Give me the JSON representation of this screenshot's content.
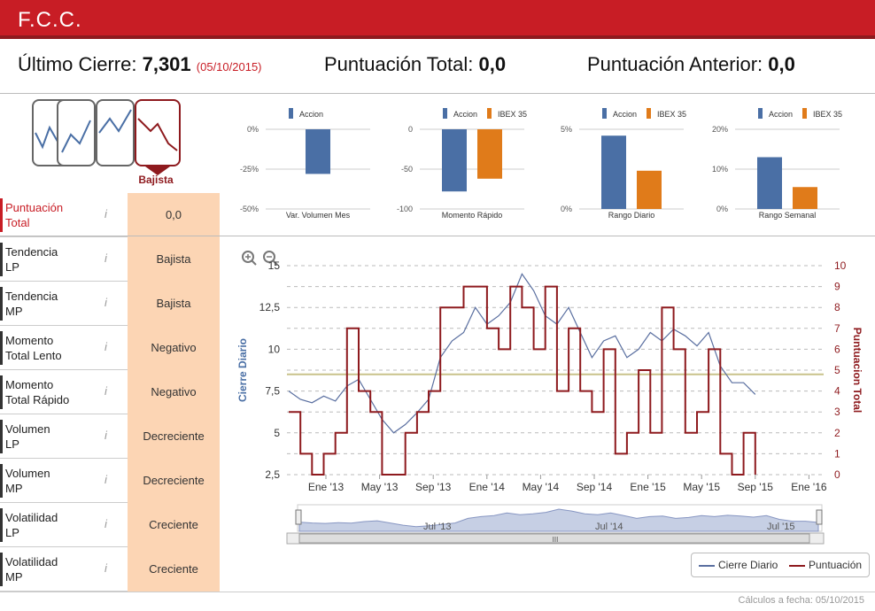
{
  "header": {
    "title": "F.C.C."
  },
  "summary": {
    "last_close_label": "Último Cierre:",
    "last_close_value": "7,301",
    "last_close_date": "(05/10/2015)",
    "total_label": "Puntuación Total:",
    "total_value": "0,0",
    "previous_label": "Puntuación Anterior:",
    "previous_value": "0,0"
  },
  "trend_icons": {
    "selected_label": "Bajista"
  },
  "rows": [
    {
      "label_1": "Puntuación",
      "label_2": "Total",
      "value": "0,0"
    },
    {
      "label_1": "Tendencia",
      "label_2": "LP",
      "value": "Bajista"
    },
    {
      "label_1": "Tendencia",
      "label_2": "MP",
      "value": "Bajista"
    },
    {
      "label_1": "Momento",
      "label_2": "Total Lento",
      "value": "Negativo"
    },
    {
      "label_1": "Momento",
      "label_2": "Total Rápido",
      "value": "Negativo"
    },
    {
      "label_1": "Volumen",
      "label_2": "LP",
      "value": "Decreciente"
    },
    {
      "label_1": "Volumen",
      "label_2": "MP",
      "value": "Decreciente"
    },
    {
      "label_1": "Volatilidad",
      "label_2": "LP",
      "value": "Creciente"
    },
    {
      "label_1": "Volatilidad",
      "label_2": "MP",
      "value": "Creciente"
    }
  ],
  "info_glyph": "i",
  "colors": {
    "brand": "#c81d25",
    "accion": "#4a6fa5",
    "ibex": "#e07b1a",
    "score": "#8e1a1e",
    "close": "#5a6fa0",
    "refline": "#c9c28a",
    "highlight": "#fcd5b4"
  },
  "chart_data": [
    {
      "type": "bar",
      "title": "Var. Volumen Mes",
      "series": [
        {
          "name": "Accion",
          "values": [
            -28
          ]
        }
      ],
      "yticks": [
        "0%",
        "-25%",
        "-50%"
      ],
      "ylim": [
        -50,
        0
      ]
    },
    {
      "type": "bar",
      "title": "Momento Rápido",
      "series": [
        {
          "name": "Accion",
          "values": [
            -78
          ]
        },
        {
          "name": "IBEX 35",
          "values": [
            -62
          ]
        }
      ],
      "yticks": [
        "0",
        "-50",
        "-100"
      ],
      "ylim": [
        -100,
        0
      ]
    },
    {
      "type": "bar",
      "title": "Rango Diario",
      "series": [
        {
          "name": "Accion",
          "values": [
            4.6
          ]
        },
        {
          "name": "IBEX 35",
          "values": [
            2.4
          ]
        }
      ],
      "yticks": [
        "5%",
        "0%"
      ],
      "ylim": [
        0,
        5
      ]
    },
    {
      "type": "bar",
      "title": "Rango Semanal",
      "series": [
        {
          "name": "Accion",
          "values": [
            13
          ]
        },
        {
          "name": "IBEX 35",
          "values": [
            5.5
          ]
        }
      ],
      "yticks": [
        "20%",
        "10%",
        "0%"
      ],
      "ylim": [
        0,
        20
      ]
    },
    {
      "type": "line",
      "xticks": [
        "Ene '13",
        "May '13",
        "Sep '13",
        "Ene '14",
        "May '14",
        "Sep '14",
        "Ene '15",
        "May '15",
        "Sep '15",
        "Ene '16"
      ],
      "ylabel_left": "Cierre Diario",
      "ylabel_right": "Puntuacion Total",
      "yticks_left": [
        "2,5",
        "5",
        "7,5",
        "10",
        "12,5",
        "15"
      ],
      "yticks_right": [
        "0",
        "1",
        "2",
        "3",
        "4",
        "5",
        "6",
        "7",
        "8",
        "9",
        "10"
      ],
      "ylim_left": [
        2.5,
        15
      ],
      "ylim_right": [
        0,
        10
      ],
      "reference_line_right": 4.8,
      "series": [
        {
          "name": "Cierre Diario",
          "values": [
            7.5,
            7.0,
            6.8,
            7.2,
            6.9,
            7.8,
            8.2,
            7.0,
            5.8,
            5.0,
            5.5,
            6.2,
            7.0,
            9.5,
            10.5,
            11.0,
            12.5,
            11.5,
            12.0,
            12.8,
            14.5,
            13.5,
            12.0,
            11.5,
            12.5,
            11.0,
            9.5,
            10.5,
            10.8,
            9.5,
            10.0,
            11.0,
            10.5,
            11.2,
            10.8,
            10.2,
            11.0,
            9.0,
            8.0,
            8.0,
            7.3
          ],
          "x_range": [
            "Ene '13",
            "Sep '15"
          ]
        },
        {
          "name": "Puntuación",
          "values": [
            3,
            1,
            0,
            1,
            2,
            7,
            4,
            3,
            0,
            0,
            2,
            3,
            4,
            8,
            8,
            9,
            9,
            7,
            6,
            9,
            8,
            6,
            9,
            4,
            7,
            4,
            3,
            6,
            1,
            2,
            5,
            2,
            8,
            6,
            2,
            3,
            6,
            1,
            0,
            2,
            0
          ],
          "x_range": [
            "Ene '13",
            "Sep '15"
          ]
        }
      ]
    }
  ],
  "navigator": {
    "labels": [
      "Jul '13",
      "Jul '14",
      "Jul '15"
    ],
    "scroll_glyph": "III"
  },
  "legend": {
    "close_label": "Cierre Diario",
    "score_label": "Puntuación"
  },
  "footer": {
    "calc_label": "Cálculos a fecha: 05/10/2015"
  }
}
